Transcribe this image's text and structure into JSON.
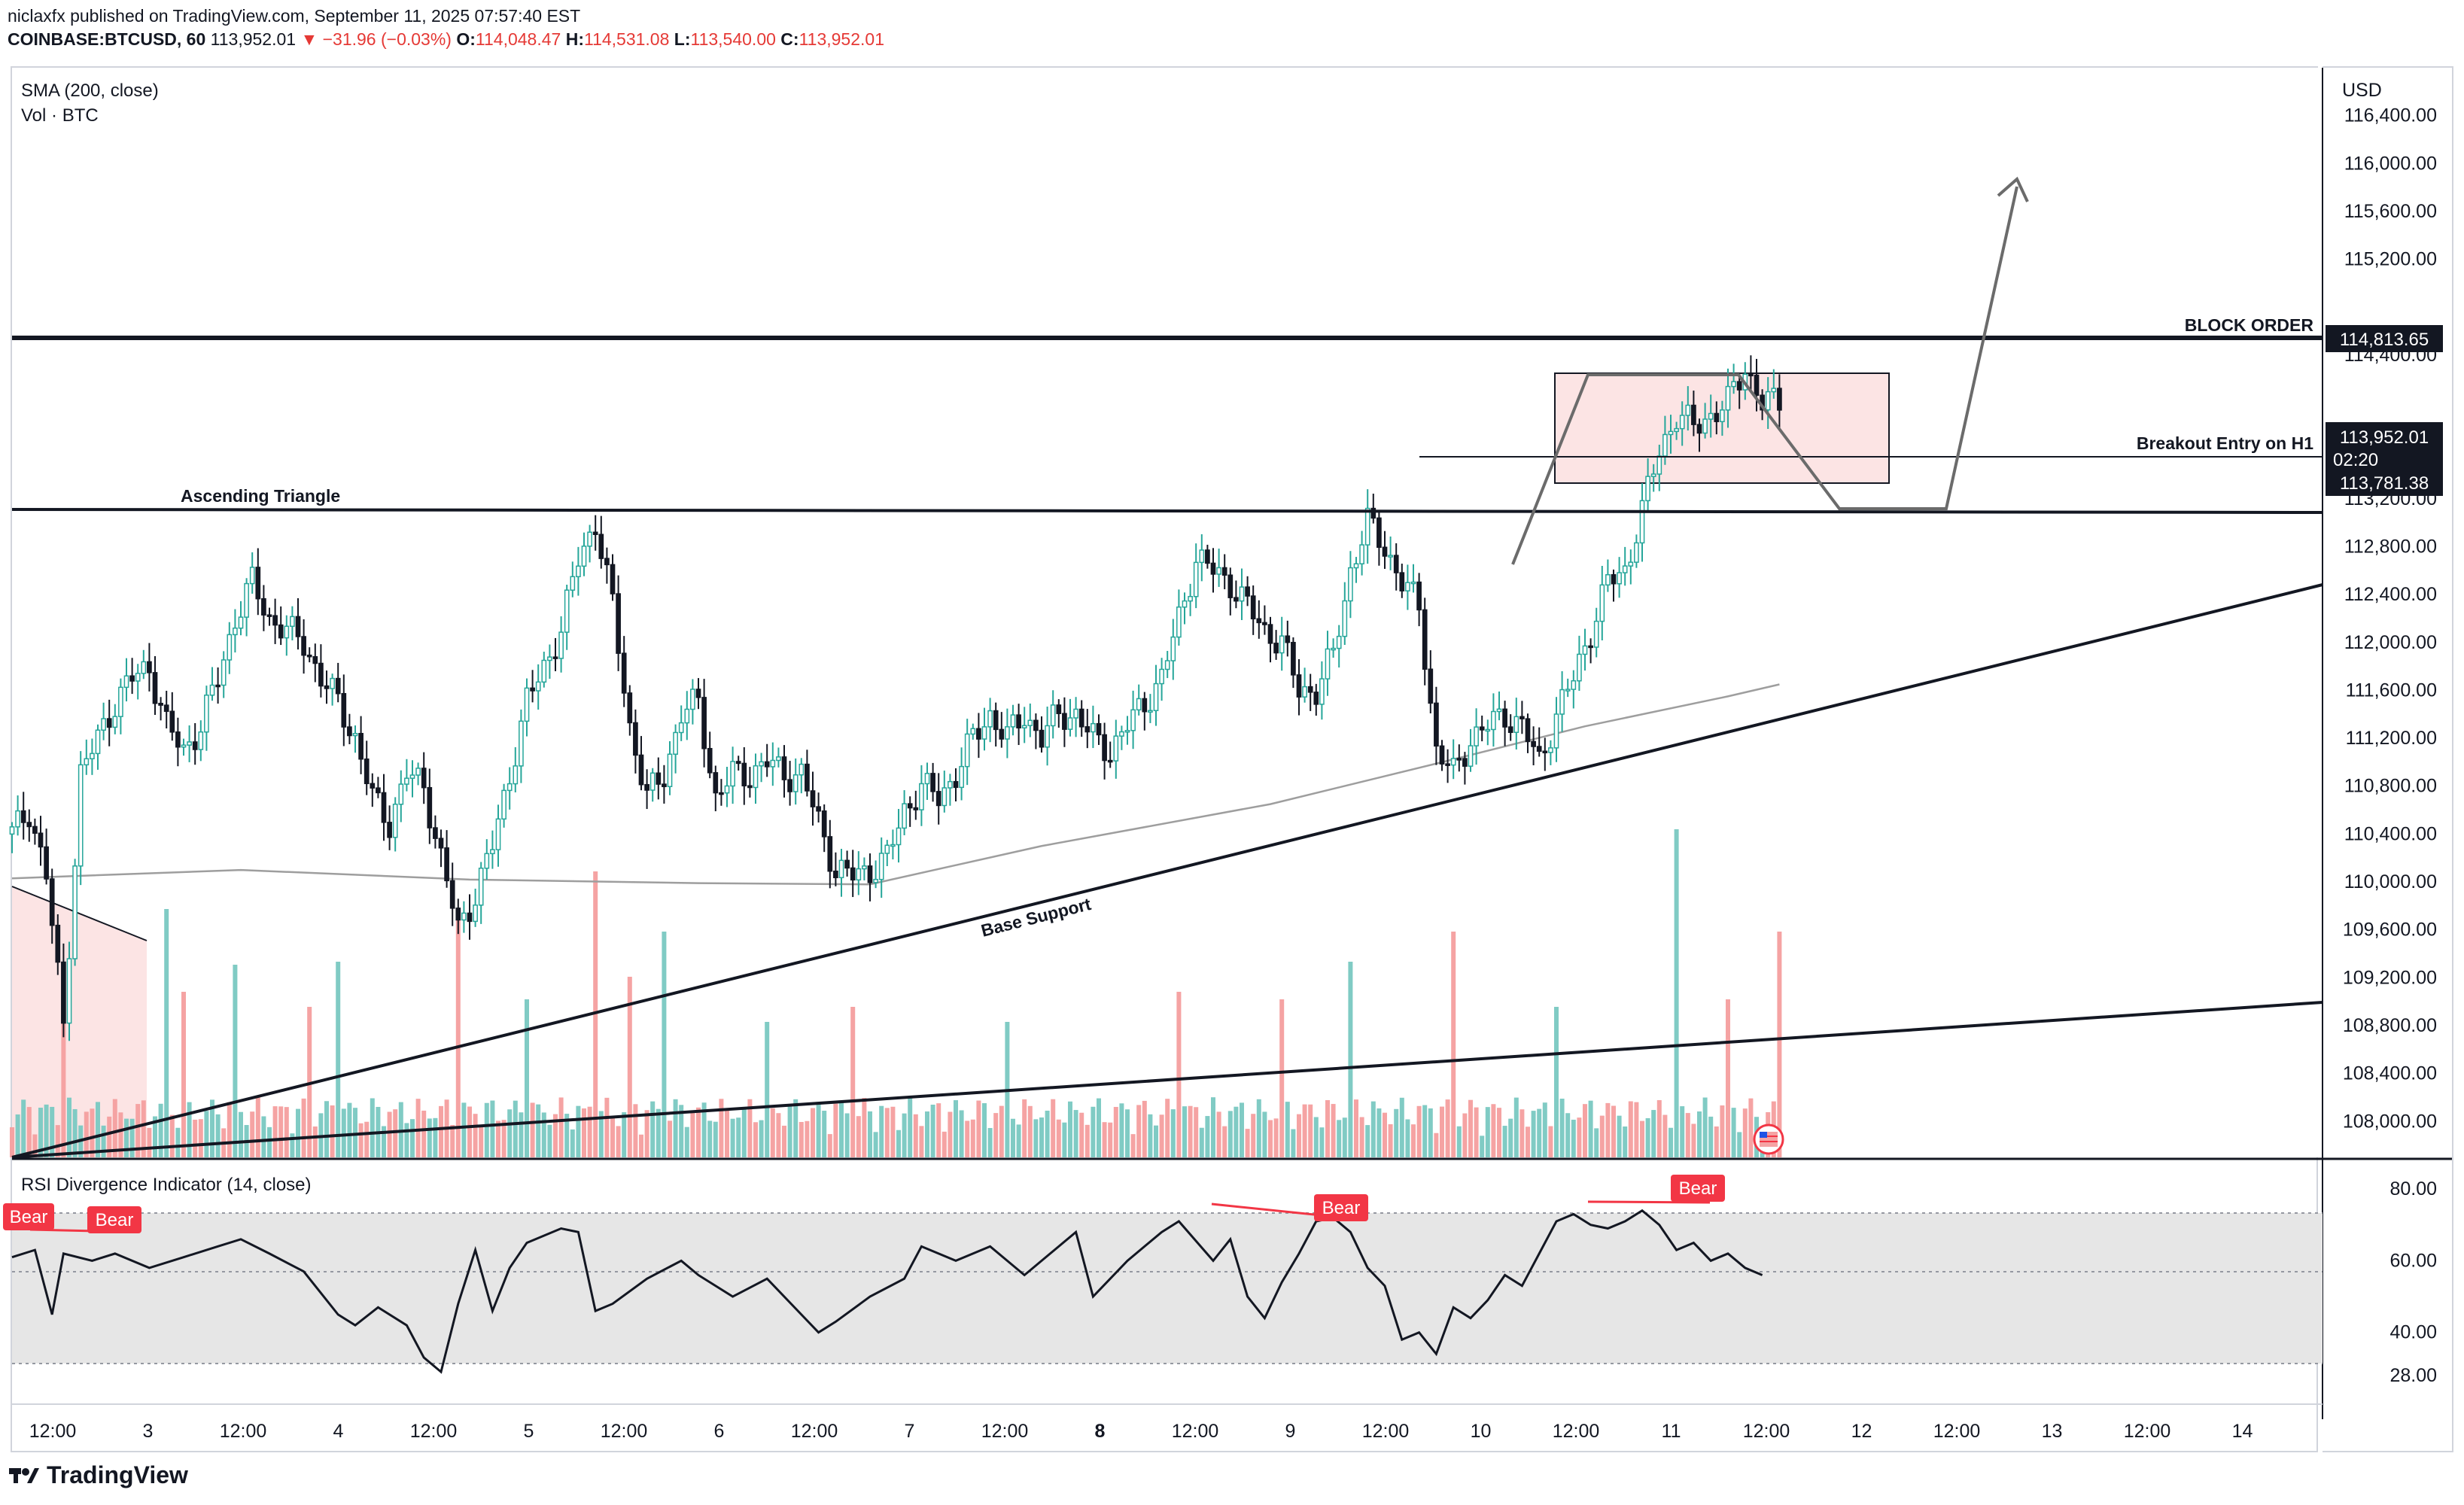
{
  "header": {
    "publisher_line": "niclaxfx published on TradingView.com, September 11, 2025 07:57:40 EST",
    "symbol": "COINBASE:BTCUSD, 60",
    "last": "113,952.01",
    "change": "▼ −31.96 (−0.03%)",
    "o_label": "O:",
    "o": "114,048.47",
    "h_label": "H:",
    "h": "114,531.08",
    "l_label": "L:",
    "l": "113,540.00",
    "c_label": "C:",
    "c": "113,952.01"
  },
  "legend": {
    "sma": "SMA (200, close)",
    "vol": "Vol · BTC",
    "rsi": "RSI Divergence Indicator (14, close)"
  },
  "axis": {
    "currency": "USD"
  },
  "annotations": {
    "block_order": "BLOCK ORDER",
    "breakout": "Breakout Entry on H1",
    "ascending": "Ascending Triangle",
    "base_support": "Base Support"
  },
  "price_labels": {
    "block": "114,813.65",
    "last": "113,952.01",
    "countdown": "02:20",
    "low": "113,781.38"
  },
  "rsi_labels": [
    "Bear",
    "Bear",
    "Bear",
    "Bear"
  ],
  "footer": {
    "brand": "TradingView"
  },
  "colors": {
    "up": "#26a69a",
    "down": "#131722",
    "vol_up": "#80cbc4",
    "vol_down": "#f5a3a3",
    "bear": "#f23645",
    "zone": "#fce4e4",
    "rsi_band": "#e6e6e6"
  },
  "chart_data": [
    {
      "type": "candlestick",
      "title": "COINBASE:BTCUSD, 60",
      "ylabel": "USD",
      "ylim": [
        107700,
        116800
      ],
      "y_ticks": [
        "116,400.00",
        "116,000.00",
        "115,600.00",
        "115,200.00",
        "114,400.00",
        "113,200.00",
        "112,800.00",
        "112,400.00",
        "112,000.00",
        "111,600.00",
        "111,200.00",
        "110,800.00",
        "110,400.00",
        "110,000.00",
        "109,600.00",
        "109,200.00",
        "108,800.00",
        "108,400.00",
        "108,000.00"
      ],
      "x_ticks": [
        "12:00",
        "3",
        "12:00",
        "4",
        "12:00",
        "5",
        "12:00",
        "6",
        "12:00",
        "7",
        "12:00",
        "8",
        "12:00",
        "9",
        "12:00",
        "10",
        "12:00",
        "11",
        "12:00",
        "12",
        "12:00",
        "13",
        "12:00",
        "14"
      ],
      "close_path": [
        [
          0,
          110400
        ],
        [
          3,
          110600
        ],
        [
          6,
          110050
        ],
        [
          9,
          108800
        ],
        [
          12,
          110900
        ],
        [
          15,
          111200
        ],
        [
          18,
          111500
        ],
        [
          21,
          111700
        ],
        [
          24,
          111800
        ],
        [
          27,
          111300
        ],
        [
          30,
          111100
        ],
        [
          33,
          111300
        ],
        [
          36,
          111700
        ],
        [
          39,
          112200
        ],
        [
          42,
          112500
        ],
        [
          45,
          112200
        ],
        [
          48,
          112100
        ],
        [
          51,
          112000
        ],
        [
          54,
          111700
        ],
        [
          57,
          111500
        ],
        [
          60,
          111200
        ],
        [
          63,
          110700
        ],
        [
          66,
          110500
        ],
        [
          69,
          110900
        ],
        [
          72,
          110800
        ],
        [
          75,
          110200
        ],
        [
          78,
          109600
        ],
        [
          81,
          109900
        ],
        [
          84,
          110300
        ],
        [
          87,
          110900
        ],
        [
          90,
          111500
        ],
        [
          93,
          111800
        ],
        [
          96,
          112100
        ],
        [
          99,
          112700
        ],
        [
          102,
          113000
        ],
        [
          105,
          112300
        ],
        [
          108,
          111300
        ],
        [
          111,
          110700
        ],
        [
          114,
          110900
        ],
        [
          117,
          111400
        ],
        [
          120,
          111500
        ],
        [
          123,
          110700
        ],
        [
          126,
          110900
        ],
        [
          129,
          110900
        ],
        [
          132,
          111000
        ],
        [
          135,
          110900
        ],
        [
          138,
          110900
        ],
        [
          141,
          110500
        ],
        [
          144,
          110100
        ],
        [
          147,
          110050
        ],
        [
          150,
          110100
        ],
        [
          153,
          110200
        ],
        [
          156,
          110600
        ],
        [
          159,
          110800
        ],
        [
          162,
          110700
        ],
        [
          165,
          110900
        ],
        [
          168,
          111200
        ],
        [
          171,
          111400
        ],
        [
          174,
          111200
        ],
        [
          177,
          111400
        ],
        [
          180,
          111200
        ],
        [
          183,
          111400
        ],
        [
          186,
          111400
        ],
        [
          189,
          111200
        ],
        [
          192,
          111100
        ],
        [
          195,
          111300
        ],
        [
          198,
          111500
        ],
        [
          201,
          111700
        ],
        [
          204,
          112200
        ],
        [
          207,
          112700
        ],
        [
          210,
          112600
        ],
        [
          213,
          112500
        ],
        [
          216,
          112300
        ],
        [
          219,
          112100
        ],
        [
          222,
          112000
        ],
        [
          225,
          111600
        ],
        [
          228,
          111600
        ],
        [
          231,
          111900
        ],
        [
          234,
          112600
        ],
        [
          237,
          113000
        ],
        [
          240,
          112800
        ],
        [
          243,
          112500
        ],
        [
          246,
          112300
        ],
        [
          249,
          111100
        ],
        [
          252,
          110900
        ],
        [
          255,
          111200
        ],
        [
          258,
          111300
        ],
        [
          261,
          111400
        ],
        [
          264,
          111300
        ],
        [
          267,
          111000
        ],
        [
          270,
          111400
        ],
        [
          273,
          111700
        ],
        [
          276,
          112100
        ],
        [
          279,
          112500
        ],
        [
          282,
          112600
        ],
        [
          285,
          113100
        ],
        [
          288,
          113600
        ],
        [
          291,
          113900
        ],
        [
          294,
          113800
        ],
        [
          297,
          113900
        ],
        [
          300,
          114000
        ],
        [
          303,
          114300
        ],
        [
          306,
          114000
        ],
        [
          309,
          114000
        ]
      ]
    },
    {
      "type": "line",
      "series": [
        {
          "name": "SMA (200, close)",
          "values": [
            [
              0,
              110030
            ],
            [
              40,
              110100
            ],
            [
              80,
              110020
            ],
            [
              120,
              109990
            ],
            [
              150,
              109980
            ],
            [
              180,
              110300
            ],
            [
              220,
              110650
            ],
            [
              250,
              111000
            ],
            [
              275,
              111300
            ],
            [
              300,
              111550
            ],
            [
              309,
              111650
            ]
          ]
        }
      ]
    },
    {
      "type": "bar",
      "series": [
        {
          "name": "Vol · BTC",
          "values": [
            [
              9,
              1080,
              "d"
            ],
            [
              27,
              1650,
              "u"
            ],
            [
              30,
              1100,
              "d"
            ],
            [
              39,
              1280,
              "u"
            ],
            [
              52,
              1000,
              "d"
            ],
            [
              57,
              1300,
              "u"
            ],
            [
              78,
              1600,
              "d"
            ],
            [
              90,
              1050,
              "u"
            ],
            [
              102,
              1900,
              "d"
            ],
            [
              108,
              1200,
              "d"
            ],
            [
              114,
              1500,
              "u"
            ],
            [
              132,
              900,
              "u"
            ],
            [
              147,
              1000,
              "d"
            ],
            [
              174,
              900,
              "u"
            ],
            [
              204,
              1100,
              "d"
            ],
            [
              222,
              1050,
              "d"
            ],
            [
              234,
              1300,
              "u"
            ],
            [
              252,
              1500,
              "d"
            ],
            [
              270,
              1000,
              "u"
            ],
            [
              291,
              2180,
              "u"
            ],
            [
              300,
              1050,
              "d"
            ],
            [
              309,
              1500,
              "d"
            ]
          ]
        }
      ]
    },
    {
      "type": "line",
      "title": "RSI Divergence Indicator (14, close)",
      "ylim": [
        20,
        88
      ],
      "y_ticks": [
        "80.00",
        "60.00",
        "40.00",
        "28.00"
      ],
      "series": [
        {
          "name": "RSI",
          "values": [
            [
              0,
              61
            ],
            [
              4,
              63
            ],
            [
              7,
              45
            ],
            [
              9,
              62
            ],
            [
              14,
              60
            ],
            [
              18,
              62
            ],
            [
              24,
              58
            ],
            [
              30,
              61
            ],
            [
              36,
              64
            ],
            [
              40,
              66
            ],
            [
              45,
              62
            ],
            [
              51,
              57
            ],
            [
              57,
              45
            ],
            [
              60,
              42
            ],
            [
              64,
              47
            ],
            [
              69,
              42
            ],
            [
              72,
              33
            ],
            [
              75,
              29
            ],
            [
              78,
              48
            ],
            [
              81,
              63
            ],
            [
              84,
              46
            ],
            [
              87,
              58
            ],
            [
              90,
              65
            ],
            [
              96,
              69
            ],
            [
              99,
              68
            ],
            [
              102,
              46
            ],
            [
              105,
              48
            ],
            [
              111,
              55
            ],
            [
              117,
              60
            ],
            [
              120,
              56
            ],
            [
              126,
              50
            ],
            [
              132,
              55
            ],
            [
              138,
              45
            ],
            [
              141,
              40
            ],
            [
              144,
              43
            ],
            [
              150,
              50
            ],
            [
              156,
              55
            ],
            [
              159,
              64
            ],
            [
              165,
              60
            ],
            [
              171,
              64
            ],
            [
              177,
              56
            ],
            [
              183,
              64
            ],
            [
              186,
              68
            ],
            [
              189,
              50
            ],
            [
              195,
              60
            ],
            [
              201,
              68
            ],
            [
              204,
              71
            ],
            [
              210,
              60
            ],
            [
              213,
              66
            ],
            [
              216,
              50
            ],
            [
              219,
              44
            ],
            [
              222,
              54
            ],
            [
              225,
              62
            ],
            [
              228,
              71
            ],
            [
              231,
              72
            ],
            [
              234,
              68
            ],
            [
              237,
              58
            ],
            [
              240,
              53
            ],
            [
              243,
              38
            ],
            [
              246,
              40
            ],
            [
              249,
              34
            ],
            [
              252,
              47
            ],
            [
              255,
              44
            ],
            [
              258,
              49
            ],
            [
              261,
              56
            ],
            [
              264,
              53
            ],
            [
              267,
              62
            ],
            [
              270,
              71
            ],
            [
              273,
              73
            ],
            [
              276,
              70
            ],
            [
              279,
              69
            ],
            [
              282,
              71
            ],
            [
              285,
              74
            ],
            [
              288,
              70
            ],
            [
              291,
              63
            ],
            [
              294,
              65
            ],
            [
              297,
              60
            ],
            [
              300,
              62
            ],
            [
              303,
              58
            ],
            [
              306,
              56
            ]
          ]
        }
      ]
    }
  ]
}
